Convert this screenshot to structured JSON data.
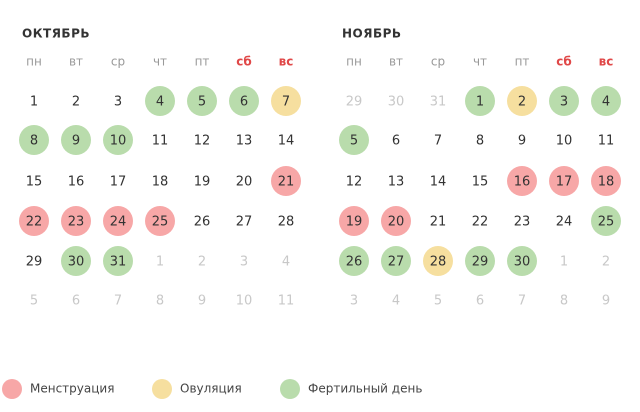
{
  "months": [
    {
      "title": "ОКТЯБРЬ",
      "weekdays": [
        "пн",
        "вт",
        "ср",
        "чт",
        "пт",
        "сб",
        "вс"
      ],
      "weeks": [
        [
          {
            "n": 1,
            "state": "normal"
          },
          {
            "n": 2,
            "state": "normal"
          },
          {
            "n": 3,
            "state": "normal"
          },
          {
            "n": 4,
            "state": "fertile"
          },
          {
            "n": 5,
            "state": "fertile"
          },
          {
            "n": 6,
            "state": "fertile"
          },
          {
            "n": 7,
            "state": "ovulation"
          }
        ],
        [
          {
            "n": 8,
            "state": "fertile"
          },
          {
            "n": 9,
            "state": "fertile"
          },
          {
            "n": 10,
            "state": "fertile"
          },
          {
            "n": 11,
            "state": "normal"
          },
          {
            "n": 12,
            "state": "normal"
          },
          {
            "n": 13,
            "state": "normal"
          },
          {
            "n": 14,
            "state": "normal"
          }
        ],
        [
          {
            "n": 15,
            "state": "normal"
          },
          {
            "n": 16,
            "state": "normal"
          },
          {
            "n": 17,
            "state": "normal"
          },
          {
            "n": 18,
            "state": "normal"
          },
          {
            "n": 19,
            "state": "normal"
          },
          {
            "n": 20,
            "state": "normal"
          },
          {
            "n": 21,
            "state": "menstruation"
          }
        ],
        [
          {
            "n": 22,
            "state": "menstruation"
          },
          {
            "n": 23,
            "state": "menstruation"
          },
          {
            "n": 24,
            "state": "menstruation"
          },
          {
            "n": 25,
            "state": "menstruation"
          },
          {
            "n": 26,
            "state": "normal"
          },
          {
            "n": 27,
            "state": "normal"
          },
          {
            "n": 28,
            "state": "normal"
          }
        ],
        [
          {
            "n": 29,
            "state": "normal"
          },
          {
            "n": 30,
            "state": "fertile"
          },
          {
            "n": 31,
            "state": "fertile"
          },
          {
            "n": 1,
            "state": "other"
          },
          {
            "n": 2,
            "state": "other"
          },
          {
            "n": 3,
            "state": "other"
          },
          {
            "n": 4,
            "state": "other"
          }
        ],
        [
          {
            "n": 5,
            "state": "other"
          },
          {
            "n": 6,
            "state": "other"
          },
          {
            "n": 7,
            "state": "other"
          },
          {
            "n": 8,
            "state": "other"
          },
          {
            "n": 9,
            "state": "other"
          },
          {
            "n": 10,
            "state": "other"
          },
          {
            "n": 11,
            "state": "other"
          }
        ]
      ]
    },
    {
      "title": "НОЯБРЬ",
      "weekdays": [
        "пн",
        "вт",
        "ср",
        "чт",
        "пт",
        "сб",
        "вс"
      ],
      "weeks": [
        [
          {
            "n": 29,
            "state": "other"
          },
          {
            "n": 30,
            "state": "other"
          },
          {
            "n": 31,
            "state": "other"
          },
          {
            "n": 1,
            "state": "fertile"
          },
          {
            "n": 2,
            "state": "ovulation"
          },
          {
            "n": 3,
            "state": "fertile"
          },
          {
            "n": 4,
            "state": "fertile"
          }
        ],
        [
          {
            "n": 5,
            "state": "fertile"
          },
          {
            "n": 6,
            "state": "normal"
          },
          {
            "n": 7,
            "state": "normal"
          },
          {
            "n": 8,
            "state": "normal"
          },
          {
            "n": 9,
            "state": "normal"
          },
          {
            "n": 10,
            "state": "normal"
          },
          {
            "n": 11,
            "state": "normal"
          }
        ],
        [
          {
            "n": 12,
            "state": "normal"
          },
          {
            "n": 13,
            "state": "normal"
          },
          {
            "n": 14,
            "state": "normal"
          },
          {
            "n": 15,
            "state": "normal"
          },
          {
            "n": 16,
            "state": "menstruation"
          },
          {
            "n": 17,
            "state": "menstruation"
          },
          {
            "n": 18,
            "state": "menstruation"
          }
        ],
        [
          {
            "n": 19,
            "state": "menstruation"
          },
          {
            "n": 20,
            "state": "menstruation"
          },
          {
            "n": 21,
            "state": "normal"
          },
          {
            "n": 22,
            "state": "normal"
          },
          {
            "n": 23,
            "state": "normal"
          },
          {
            "n": 24,
            "state": "normal"
          },
          {
            "n": 25,
            "state": "fertile"
          }
        ],
        [
          {
            "n": 26,
            "state": "fertile"
          },
          {
            "n": 27,
            "state": "fertile"
          },
          {
            "n": 28,
            "state": "ovulation"
          },
          {
            "n": 29,
            "state": "fertile"
          },
          {
            "n": 30,
            "state": "fertile"
          },
          {
            "n": 1,
            "state": "other"
          },
          {
            "n": 2,
            "state": "other"
          }
        ],
        [
          {
            "n": 3,
            "state": "other"
          },
          {
            "n": 4,
            "state": "other"
          },
          {
            "n": 5,
            "state": "other"
          },
          {
            "n": 6,
            "state": "other"
          },
          {
            "n": 7,
            "state": "other"
          },
          {
            "n": 8,
            "state": "other"
          },
          {
            "n": 9,
            "state": "other"
          }
        ]
      ]
    }
  ],
  "colors": {
    "menstruation": "#f7a7a7",
    "ovulation": "#f6df9f",
    "fertile": "#b9dcac"
  },
  "legend": [
    {
      "label": "Менструация",
      "kind": "menstruation"
    },
    {
      "label": "Овуляция",
      "kind": "ovulation"
    },
    {
      "label": "Фертильный день",
      "kind": "fertile"
    }
  ]
}
